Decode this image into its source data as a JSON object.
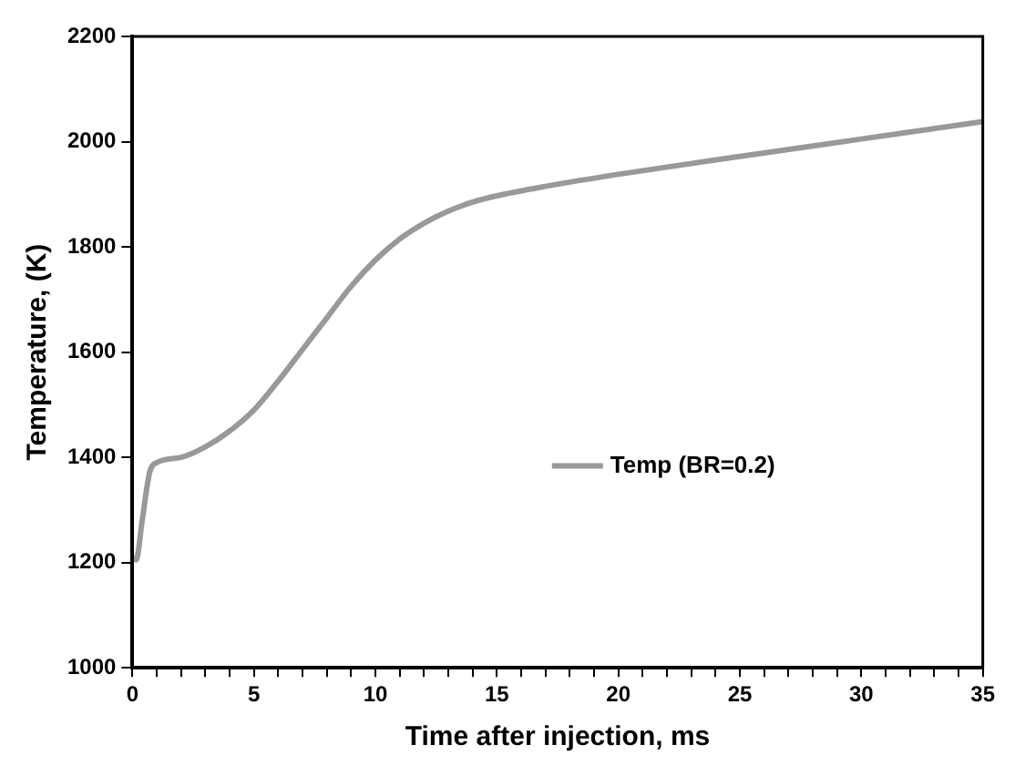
{
  "chart_data": {
    "type": "line",
    "xlabel": "Time after injection, ms",
    "ylabel": "Temperature, (K)",
    "x": [
      0,
      0.15,
      0.4,
      0.7,
      1,
      2,
      3,
      4,
      5,
      6,
      7,
      8,
      9,
      10,
      11,
      12,
      13,
      14,
      15,
      17,
      20,
      25,
      30,
      35
    ],
    "series": [
      {
        "name": "Temp (BR=0.2)",
        "color": "#999999",
        "values": [
          1210,
          1205,
          1280,
          1370,
          1390,
          1400,
          1420,
          1450,
          1490,
          1545,
          1605,
          1665,
          1725,
          1775,
          1815,
          1845,
          1868,
          1885,
          1897,
          1915,
          1938,
          1972,
          2005,
          2038
        ]
      }
    ],
    "xlim": [
      0,
      35
    ],
    "xticks": [
      0,
      {
        "value": 1,
        "label": null
      },
      {
        "value": 2,
        "label": null
      },
      {
        "value": 3,
        "label": null
      },
      {
        "value": 4,
        "label": null
      },
      5,
      {
        "value": 6,
        "label": null
      },
      {
        "value": 7,
        "label": null
      },
      {
        "value": 8,
        "label": null
      },
      {
        "value": 9,
        "label": null
      },
      10,
      {
        "value": 11,
        "label": null
      },
      {
        "value": 12,
        "label": null
      },
      {
        "value": 13,
        "label": null
      },
      {
        "value": 14,
        "label": null
      },
      15,
      {
        "value": 16,
        "label": null
      },
      {
        "value": 17,
        "label": null
      },
      {
        "value": 18,
        "label": null
      },
      {
        "value": 19,
        "label": null
      },
      20,
      {
        "value": 21,
        "label": null
      },
      {
        "value": 22,
        "label": null
      },
      {
        "value": 23,
        "label": null
      },
      {
        "value": 24,
        "label": null
      },
      25,
      {
        "value": 26,
        "label": null
      },
      {
        "value": 27,
        "label": null
      },
      {
        "value": 28,
        "label": null
      },
      {
        "value": 29,
        "label": null
      },
      30,
      {
        "value": 31,
        "label": null
      },
      {
        "value": 32,
        "label": null
      },
      {
        "value": 33,
        "label": null
      },
      {
        "value": 34,
        "label": null
      },
      35
    ],
    "ylim": [
      1000,
      2200
    ],
    "yticks": [
      1000,
      1200,
      1400,
      1600,
      1800,
      2000,
      2200
    ],
    "grid": false,
    "legend": "right",
    "marker": "none",
    "line_style": "solid"
  }
}
